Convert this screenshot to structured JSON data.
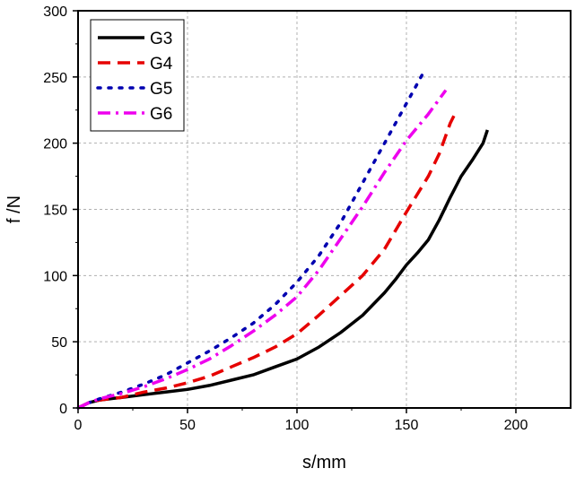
{
  "chart_data": {
    "type": "line",
    "xlabel": "s/mm",
    "ylabel": "f /N",
    "xlim": [
      0,
      225
    ],
    "ylim": [
      0,
      300
    ],
    "x_ticks": [
      0,
      50,
      100,
      150,
      200
    ],
    "y_ticks": [
      0,
      50,
      100,
      150,
      200,
      250,
      300
    ],
    "grid": true,
    "legend_position": "top-left",
    "series": [
      {
        "name": "G3",
        "color": "#000000",
        "style": "solid",
        "points": [
          [
            0,
            0
          ],
          [
            5,
            4
          ],
          [
            10,
            6
          ],
          [
            20,
            8
          ],
          [
            30,
            10
          ],
          [
            40,
            12
          ],
          [
            50,
            14
          ],
          [
            60,
            17
          ],
          [
            70,
            21
          ],
          [
            80,
            25
          ],
          [
            90,
            31
          ],
          [
            100,
            37
          ],
          [
            110,
            46
          ],
          [
            120,
            57
          ],
          [
            130,
            70
          ],
          [
            140,
            87
          ],
          [
            145,
            97
          ],
          [
            150,
            108
          ],
          [
            155,
            117
          ],
          [
            160,
            127
          ],
          [
            165,
            142
          ],
          [
            170,
            159
          ],
          [
            175,
            175
          ],
          [
            180,
            187
          ],
          [
            185,
            200
          ],
          [
            187,
            210
          ]
        ]
      },
      {
        "name": "G4",
        "color": "#e60000",
        "style": "dashed",
        "points": [
          [
            0,
            0
          ],
          [
            5,
            4
          ],
          [
            10,
            6
          ],
          [
            20,
            8
          ],
          [
            30,
            12
          ],
          [
            40,
            15
          ],
          [
            50,
            19
          ],
          [
            60,
            24
          ],
          [
            70,
            31
          ],
          [
            80,
            38
          ],
          [
            90,
            46
          ],
          [
            100,
            56
          ],
          [
            110,
            70
          ],
          [
            120,
            85
          ],
          [
            130,
            100
          ],
          [
            140,
            120
          ],
          [
            150,
            148
          ],
          [
            160,
            175
          ],
          [
            165,
            192
          ],
          [
            170,
            215
          ],
          [
            173,
            225
          ]
        ]
      },
      {
        "name": "G5",
        "color": "#0000b0",
        "style": "dotted",
        "points": [
          [
            0,
            0
          ],
          [
            5,
            4
          ],
          [
            10,
            7
          ],
          [
            20,
            12
          ],
          [
            30,
            18
          ],
          [
            40,
            25
          ],
          [
            50,
            34
          ],
          [
            60,
            43
          ],
          [
            70,
            53
          ],
          [
            80,
            64
          ],
          [
            90,
            78
          ],
          [
            100,
            95
          ],
          [
            110,
            115
          ],
          [
            120,
            140
          ],
          [
            130,
            170
          ],
          [
            140,
            200
          ],
          [
            150,
            230
          ],
          [
            155,
            245
          ],
          [
            158,
            254
          ]
        ]
      },
      {
        "name": "G6",
        "color": "#ee00ee",
        "style": "dashdot",
        "points": [
          [
            0,
            0
          ],
          [
            5,
            4
          ],
          [
            10,
            7
          ],
          [
            20,
            11
          ],
          [
            30,
            16
          ],
          [
            40,
            22
          ],
          [
            50,
            29
          ],
          [
            60,
            37
          ],
          [
            70,
            47
          ],
          [
            80,
            58
          ],
          [
            90,
            70
          ],
          [
            100,
            84
          ],
          [
            110,
            104
          ],
          [
            120,
            128
          ],
          [
            130,
            152
          ],
          [
            140,
            178
          ],
          [
            150,
            202
          ],
          [
            160,
            222
          ],
          [
            168,
            240
          ]
        ]
      }
    ]
  }
}
